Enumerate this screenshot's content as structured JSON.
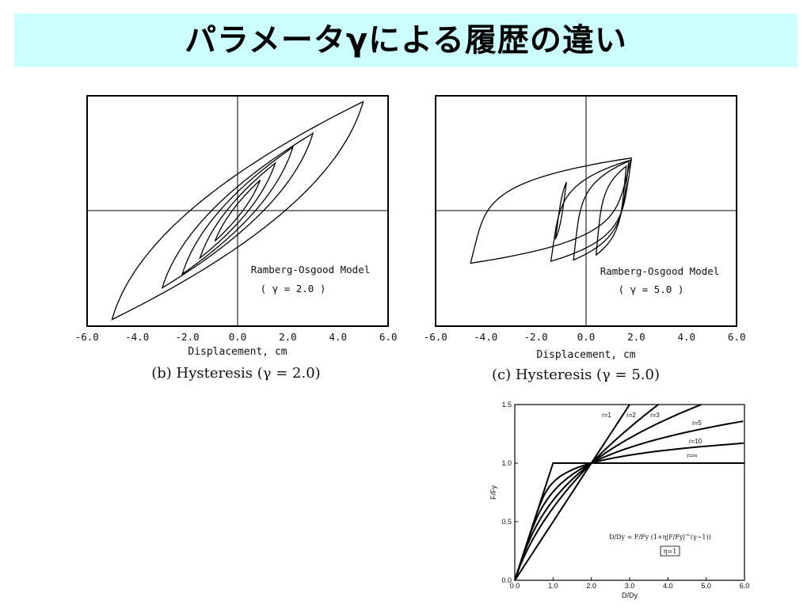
{
  "title": "パラメータγによる履歴の違い",
  "charts": [
    {
      "caption": "(b) Hysteresis (γ = 2.0)",
      "xlabel": "Displacement,  cm",
      "annotation_line1": "Ramberg-Osgood Model",
      "annotation_line2": "( γ = 2.0 )"
    },
    {
      "caption": "(c) Hysteresis (γ = 5.0)",
      "xlabel": "Displacement,  cm",
      "annotation_line1": "Ramberg-Osgood Model",
      "annotation_line2": "( γ = 5.0 )"
    },
    {
      "xlabel": "D/Dy",
      "ylabel": "F/Fy",
      "formula": "D/Dy = F/Fy (1+η|F/Fy|^(γ−1))",
      "eta_box": "η=1"
    }
  ],
  "chart_data": [
    {
      "type": "line",
      "title": "(b) Hysteresis (γ = 2.0)",
      "xlabel": "Displacement,  cm",
      "xlim": [
        -6.0,
        6.0
      ],
      "ylim": [
        -1.65,
        1.8
      ],
      "xticks": [
        "-6.0",
        "-4.0",
        "-2.0",
        "0.0",
        "2.0",
        "4.0",
        "6.0"
      ],
      "series": [
        {
          "amplitude": 5.0,
          "F_peak": 1.72
        },
        {
          "amplitude": 3.0,
          "F_peak": 1.22
        },
        {
          "amplitude": 2.2,
          "F_peak": 1.0
        },
        {
          "amplitude": 1.5,
          "F_peak": 0.75
        },
        {
          "amplitude": 0.9,
          "F_peak": 0.48
        }
      ]
    },
    {
      "type": "line",
      "title": "(c) Hysteresis (γ = 5.0)",
      "xlabel": "Displacement,  cm",
      "xlim": [
        -6.0,
        6.0
      ],
      "ylim": [
        -1.65,
        1.8
      ],
      "xticks": [
        "-6.0",
        "-4.0",
        "-2.0",
        "0.0",
        "2.0",
        "4.0",
        "6.0"
      ],
      "series": [
        {
          "center": -1.4,
          "amplitude": 3.2,
          "F_peak": 0.83
        },
        {
          "center": 0.2,
          "amplitude": 1.6,
          "F_peak": 0.8
        },
        {
          "center": 0.6,
          "amplitude": 1.1,
          "F_peak": 0.78
        },
        {
          "center": -1.0,
          "amplitude": 0.22,
          "F_peak": 0.45
        },
        {
          "center": 1.0,
          "amplitude": 0.6,
          "F_peak": 0.7
        }
      ]
    },
    {
      "type": "line",
      "xlabel": "D/Dy",
      "ylabel": "F/Fy",
      "xlim": [
        0,
        6
      ],
      "ylim": [
        0,
        1.5
      ],
      "xticks": [
        "0.0",
        "1.0",
        "2.0",
        "3.0",
        "4.0",
        "5.0",
        "6.0"
      ],
      "yticks": [
        "0.0",
        "0.5",
        "1.0",
        "1.5"
      ],
      "series": [
        {
          "name": "r=1",
          "gamma": 1
        },
        {
          "name": "r=2",
          "gamma": 2
        },
        {
          "name": "r=3",
          "gamma": 3
        },
        {
          "name": "r=5",
          "gamma": 5
        },
        {
          "name": "r=10",
          "gamma": 10
        },
        {
          "name": "r=∞",
          "gamma": "inf"
        }
      ]
    }
  ]
}
